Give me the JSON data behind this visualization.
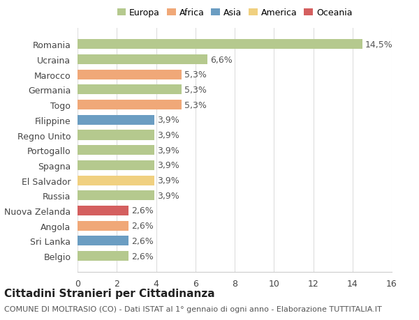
{
  "categories": [
    "Romania",
    "Ucraina",
    "Marocco",
    "Germania",
    "Togo",
    "Filippine",
    "Regno Unito",
    "Portogallo",
    "Spagna",
    "El Salvador",
    "Russia",
    "Nuova Zelanda",
    "Angola",
    "Sri Lanka",
    "Belgio"
  ],
  "values": [
    14.5,
    6.6,
    5.3,
    5.3,
    5.3,
    3.9,
    3.9,
    3.9,
    3.9,
    3.9,
    3.9,
    2.6,
    2.6,
    2.6,
    2.6
  ],
  "labels": [
    "14,5%",
    "6,6%",
    "5,3%",
    "5,3%",
    "5,3%",
    "3,9%",
    "3,9%",
    "3,9%",
    "3,9%",
    "3,9%",
    "3,9%",
    "2,6%",
    "2,6%",
    "2,6%",
    "2,6%"
  ],
  "continents": [
    "Europa",
    "Europa",
    "Africa",
    "Europa",
    "Africa",
    "Asia",
    "Europa",
    "Europa",
    "Europa",
    "America",
    "Europa",
    "Oceania",
    "Africa",
    "Asia",
    "Europa"
  ],
  "continent_colors": {
    "Europa": "#b5c98e",
    "Africa": "#f0a878",
    "Asia": "#6b9dc2",
    "America": "#f0d080",
    "Oceania": "#d45f5f"
  },
  "legend_order": [
    "Europa",
    "Africa",
    "Asia",
    "America",
    "Oceania"
  ],
  "title": "Cittadini Stranieri per Cittadinanza",
  "subtitle": "COMUNE DI MOLTRASIO (CO) - Dati ISTAT al 1° gennaio di ogni anno - Elaborazione TUTTITALIA.IT",
  "xlim": [
    0,
    16
  ],
  "xticks": [
    0,
    2,
    4,
    6,
    8,
    10,
    12,
    14,
    16
  ],
  "background_color": "#ffffff",
  "grid_color": "#dddddd",
  "bar_height": 0.65,
  "title_fontsize": 11,
  "subtitle_fontsize": 8,
  "label_fontsize": 9,
  "tick_fontsize": 9
}
